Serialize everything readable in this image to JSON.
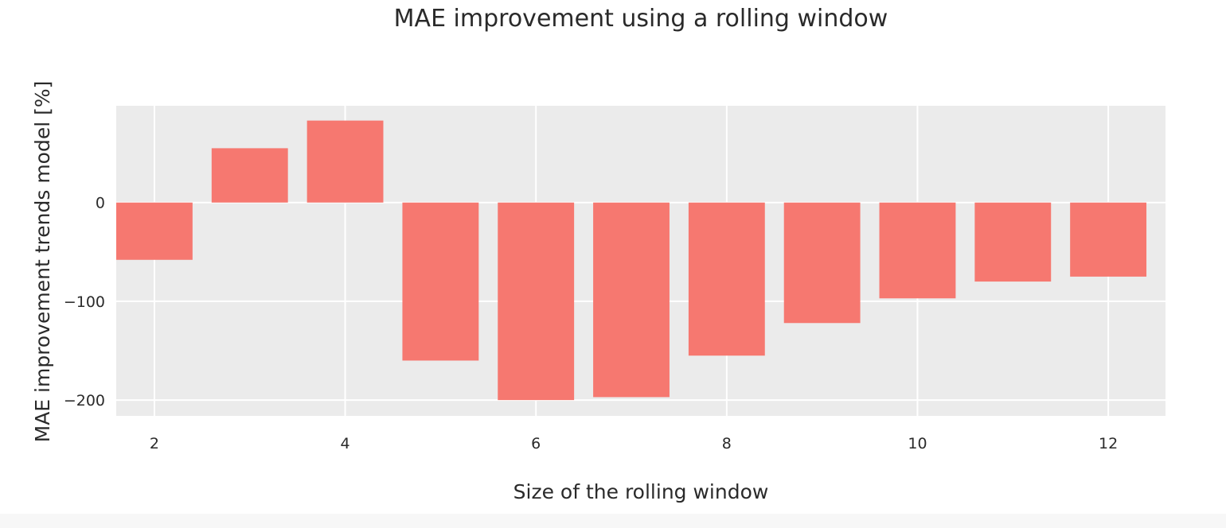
{
  "chart_data": {
    "type": "bar",
    "title": "MAE improvement using a rolling window",
    "xlabel": "Size of the rolling window",
    "ylabel": "MAE improvement trends model [%]",
    "x": [
      2,
      3,
      4,
      5,
      6,
      7,
      8,
      9,
      10,
      11,
      12
    ],
    "values": [
      -58,
      55,
      83,
      -160,
      -200,
      -197,
      -155,
      -122,
      -97,
      -80,
      -75
    ],
    "x_ticks": [
      2,
      4,
      6,
      8,
      10,
      12
    ],
    "x_tick_labels": [
      "2",
      "4",
      "6",
      "8",
      "10",
      "12"
    ],
    "y_ticks": [
      0,
      -100,
      -200
    ],
    "y_tick_labels": [
      "0",
      "−100",
      "−200"
    ],
    "xlim": [
      1.6,
      12.6
    ],
    "ylim": [
      -216,
      98
    ],
    "grid": true,
    "colors": {
      "bar": "#f67870",
      "plot_background": "#ebebeb",
      "grid": "#ffffff",
      "text": "#2a2a2a"
    }
  }
}
